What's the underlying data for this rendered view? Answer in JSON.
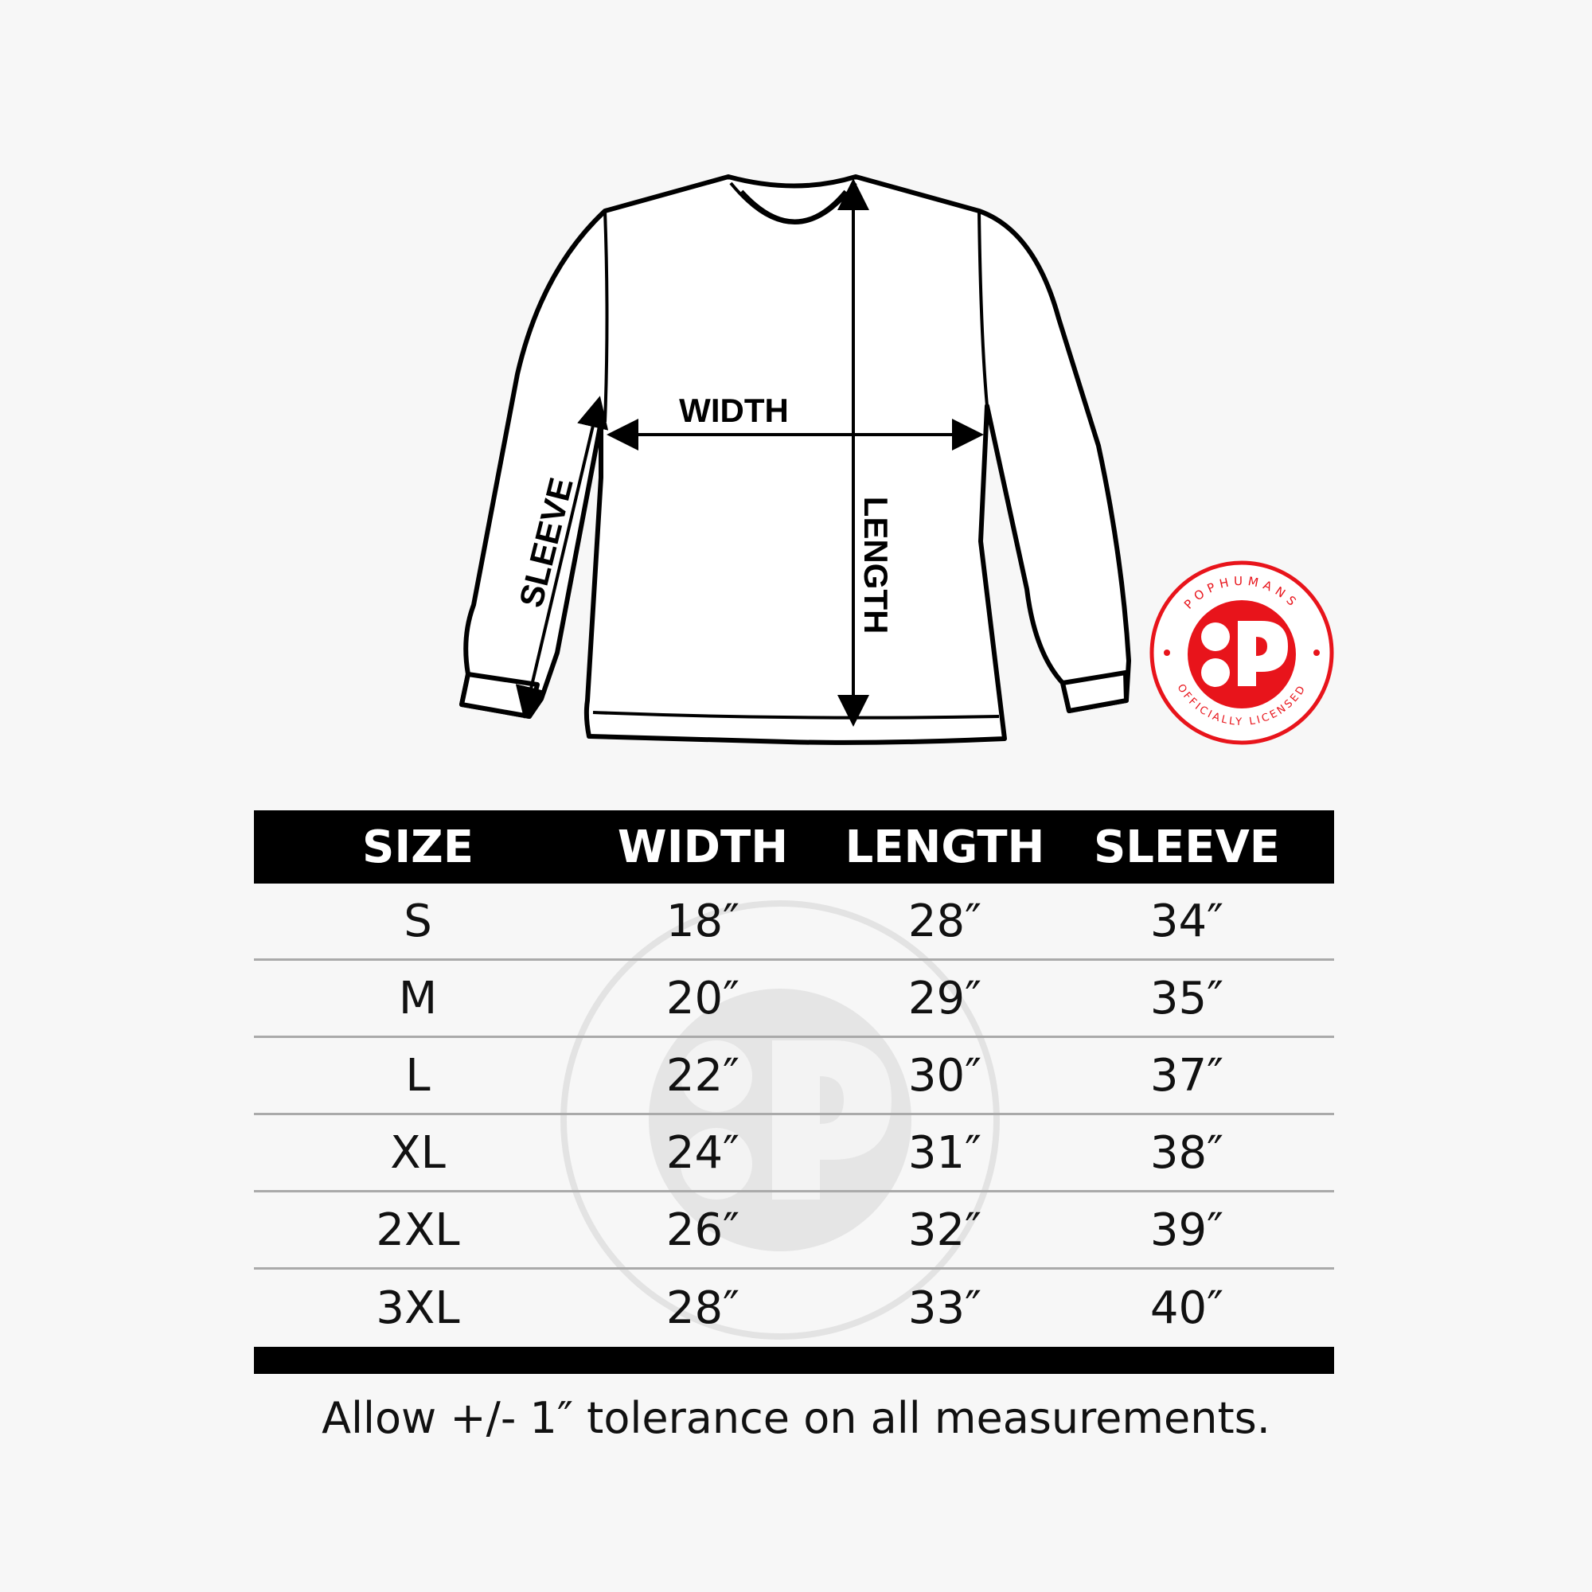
{
  "diagram": {
    "labels": {
      "width": "WIDTH",
      "length": "LENGTH",
      "sleeve": "SLEEVE"
    }
  },
  "logo": {
    "top_text": "POPHUMANS",
    "bottom_text": "OFFICIALLY LICENSED",
    "color": "#e8141b"
  },
  "table": {
    "headers": [
      "SIZE",
      "WIDTH",
      "LENGTH",
      "SLEEVE"
    ],
    "rows": [
      [
        "S",
        "18″",
        "28″",
        "34″"
      ],
      [
        "M",
        "20″",
        "29″",
        "35″"
      ],
      [
        "L",
        "22″",
        "30″",
        "37″"
      ],
      [
        "XL",
        "24″",
        "31″",
        "38″"
      ],
      [
        "2XL",
        "26″",
        "32″",
        "39″"
      ],
      [
        "3XL",
        "28″",
        "33″",
        "40″"
      ]
    ]
  },
  "footer": "Allow +/- 1″ tolerance on all measurements."
}
